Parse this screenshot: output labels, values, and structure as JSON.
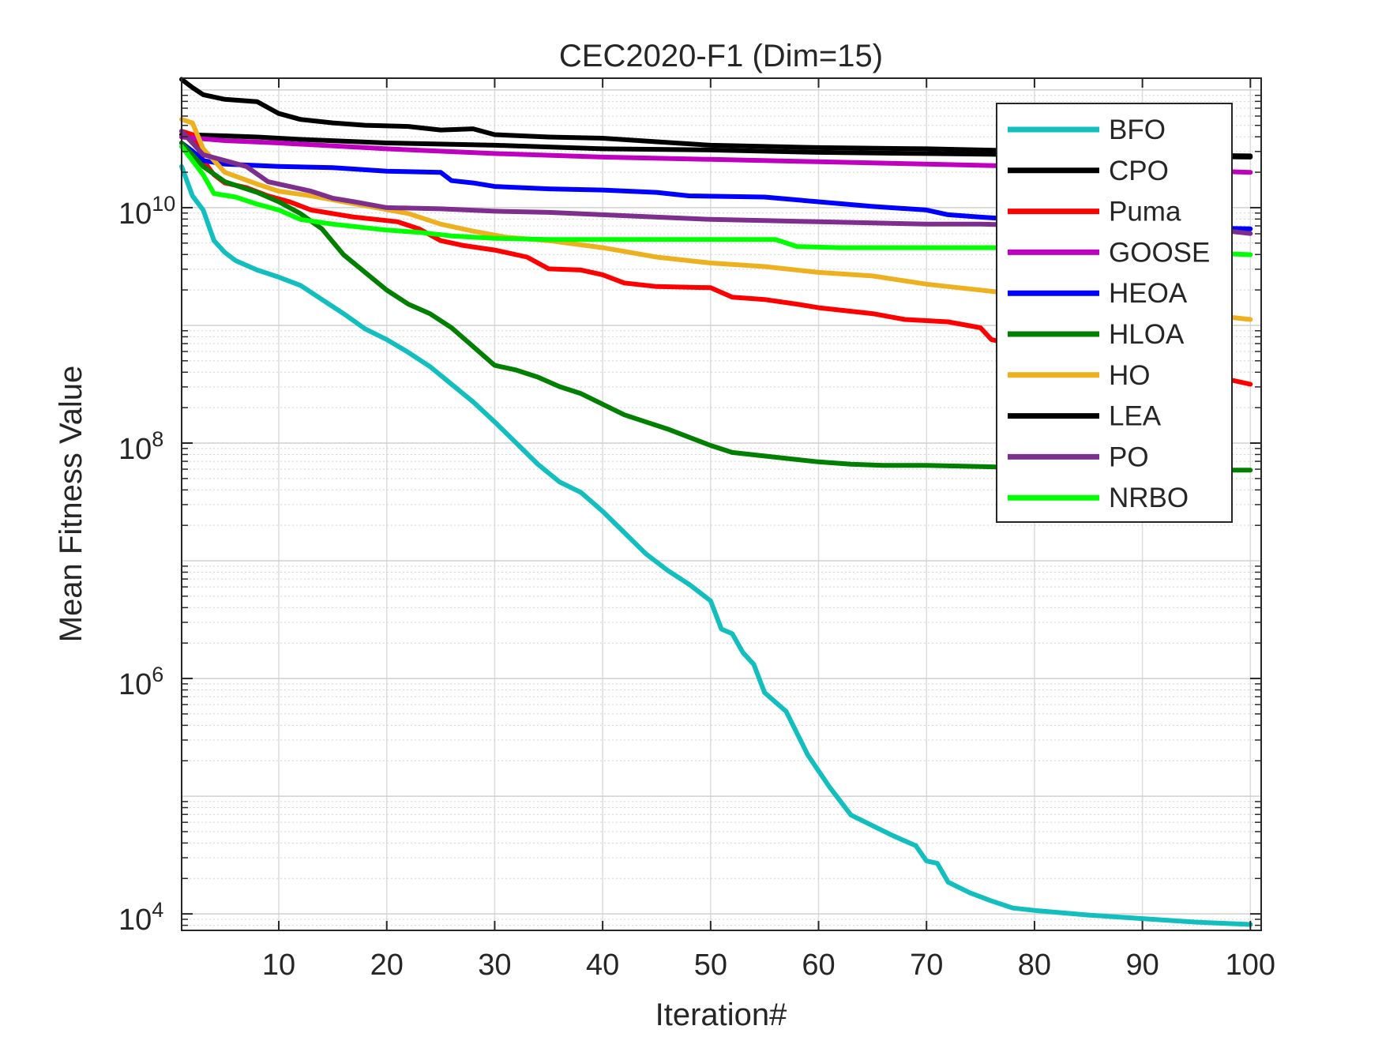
{
  "chart_data": {
    "type": "line",
    "title": "CEC2020-F1 (Dim=15)",
    "xlabel": "Iteration#",
    "ylabel": "Mean Fitness Value",
    "xscale": "linear",
    "yscale": "log",
    "xlim": [
      1,
      101
    ],
    "ylim_log10": [
      3.86,
      11.1
    ],
    "xticks": [
      {
        "value": 10,
        "label": "10"
      },
      {
        "value": 20,
        "label": "20"
      },
      {
        "value": 30,
        "label": "30"
      },
      {
        "value": 40,
        "label": "40"
      },
      {
        "value": 50,
        "label": "50"
      },
      {
        "value": 60,
        "label": "60"
      },
      {
        "value": 70,
        "label": "70"
      },
      {
        "value": 80,
        "label": "80"
      },
      {
        "value": 90,
        "label": "90"
      },
      {
        "value": 100,
        "label": "100"
      }
    ],
    "yticks": [
      {
        "exp": 4,
        "base": "10",
        "sup": "4"
      },
      {
        "exp": 6,
        "base": "10",
        "sup": "6"
      },
      {
        "exp": 8,
        "base": "10",
        "sup": "8"
      },
      {
        "exp": 10,
        "base": "10",
        "sup": "10"
      }
    ],
    "grid": true,
    "minor_grid": true,
    "legend_position": "top-right",
    "series": [
      {
        "name": "BFO",
        "color": "#12BEBE",
        "points": [
          [
            1,
            10.35
          ],
          [
            2,
            10.1
          ],
          [
            3,
            9.98
          ],
          [
            4,
            9.72
          ],
          [
            5,
            9.62
          ],
          [
            6,
            9.55
          ],
          [
            8,
            9.47
          ],
          [
            10,
            9.41
          ],
          [
            12,
            9.34
          ],
          [
            14,
            9.22
          ],
          [
            16,
            9.1
          ],
          [
            18,
            8.97
          ],
          [
            20,
            8.88
          ],
          [
            22,
            8.77
          ],
          [
            24,
            8.65
          ],
          [
            26,
            8.5
          ],
          [
            28,
            8.35
          ],
          [
            30,
            8.18
          ],
          [
            32,
            8.0
          ],
          [
            34,
            7.82
          ],
          [
            36,
            7.67
          ],
          [
            38,
            7.58
          ],
          [
            40,
            7.42
          ],
          [
            42,
            7.24
          ],
          [
            44,
            7.06
          ],
          [
            46,
            6.92
          ],
          [
            48,
            6.8
          ],
          [
            50,
            6.66
          ],
          [
            51,
            6.42
          ],
          [
            52,
            6.38
          ],
          [
            53,
            6.22
          ],
          [
            54,
            6.12
          ],
          [
            55,
            5.88
          ],
          [
            57,
            5.72
          ],
          [
            59,
            5.35
          ],
          [
            61,
            5.08
          ],
          [
            63,
            4.84
          ],
          [
            65,
            4.75
          ],
          [
            67,
            4.66
          ],
          [
            69,
            4.58
          ],
          [
            70,
            4.45
          ],
          [
            71,
            4.43
          ],
          [
            72,
            4.27
          ],
          [
            74,
            4.18
          ],
          [
            76,
            4.11
          ],
          [
            78,
            4.05
          ],
          [
            80,
            4.03
          ],
          [
            85,
            3.99
          ],
          [
            90,
            3.96
          ],
          [
            95,
            3.93
          ],
          [
            100,
            3.91
          ]
        ]
      },
      {
        "name": "CPO",
        "color": "#000000",
        "points": [
          [
            1,
            10.62
          ],
          [
            5,
            10.61
          ],
          [
            8,
            10.6
          ],
          [
            12,
            10.58
          ],
          [
            20,
            10.55
          ],
          [
            30,
            10.53
          ],
          [
            40,
            10.5
          ],
          [
            50,
            10.49
          ],
          [
            60,
            10.47
          ],
          [
            70,
            10.46
          ],
          [
            80,
            10.45
          ],
          [
            90,
            10.44
          ],
          [
            100,
            10.43
          ]
        ]
      },
      {
        "name": "Puma",
        "color": "#FF0000",
        "points": [
          [
            1,
            10.65
          ],
          [
            2,
            10.62
          ],
          [
            3,
            10.4
          ],
          [
            4,
            10.28
          ],
          [
            5,
            10.21
          ],
          [
            7,
            10.17
          ],
          [
            9,
            10.1
          ],
          [
            11,
            10.05
          ],
          [
            13,
            9.98
          ],
          [
            15,
            9.95
          ],
          [
            17,
            9.92
          ],
          [
            19,
            9.9
          ],
          [
            21,
            9.88
          ],
          [
            23,
            9.82
          ],
          [
            25,
            9.72
          ],
          [
            27,
            9.68
          ],
          [
            30,
            9.64
          ],
          [
            33,
            9.58
          ],
          [
            35,
            9.48
          ],
          [
            38,
            9.47
          ],
          [
            40,
            9.43
          ],
          [
            42,
            9.36
          ],
          [
            45,
            9.33
          ],
          [
            50,
            9.32
          ],
          [
            52,
            9.24
          ],
          [
            55,
            9.22
          ],
          [
            58,
            9.18
          ],
          [
            60,
            9.15
          ],
          [
            63,
            9.12
          ],
          [
            65,
            9.1
          ],
          [
            68,
            9.05
          ],
          [
            72,
            9.03
          ],
          [
            75,
            8.98
          ],
          [
            76,
            8.88
          ],
          [
            80,
            8.8
          ],
          [
            85,
            8.75
          ],
          [
            90,
            8.7
          ],
          [
            95,
            8.6
          ],
          [
            100,
            8.5
          ]
        ]
      },
      {
        "name": "GOOSE",
        "color": "#BF00BF",
        "points": [
          [
            1,
            10.6
          ],
          [
            5,
            10.57
          ],
          [
            10,
            10.55
          ],
          [
            20,
            10.5
          ],
          [
            30,
            10.46
          ],
          [
            40,
            10.43
          ],
          [
            50,
            10.41
          ],
          [
            60,
            10.39
          ],
          [
            70,
            10.37
          ],
          [
            80,
            10.35
          ],
          [
            90,
            10.33
          ],
          [
            100,
            10.3
          ]
        ]
      },
      {
        "name": "HEOA",
        "color": "#0000FF",
        "points": [
          [
            1,
            10.55
          ],
          [
            2,
            10.48
          ],
          [
            3,
            10.4
          ],
          [
            5,
            10.37
          ],
          [
            10,
            10.35
          ],
          [
            15,
            10.34
          ],
          [
            20,
            10.31
          ],
          [
            25,
            10.3
          ],
          [
            26,
            10.23
          ],
          [
            28,
            10.21
          ],
          [
            30,
            10.18
          ],
          [
            35,
            10.16
          ],
          [
            40,
            10.15
          ],
          [
            45,
            10.13
          ],
          [
            48,
            10.1
          ],
          [
            55,
            10.09
          ],
          [
            60,
            10.05
          ],
          [
            65,
            10.01
          ],
          [
            70,
            9.98
          ],
          [
            72,
            9.94
          ],
          [
            75,
            9.92
          ],
          [
            80,
            9.89
          ],
          [
            85,
            9.87
          ],
          [
            90,
            9.85
          ],
          [
            95,
            9.83
          ],
          [
            100,
            9.82
          ]
        ]
      },
      {
        "name": "HLOA",
        "color": "#007F00",
        "points": [
          [
            1,
            10.55
          ],
          [
            3,
            10.35
          ],
          [
            5,
            10.22
          ],
          [
            8,
            10.13
          ],
          [
            10,
            10.05
          ],
          [
            12,
            9.95
          ],
          [
            14,
            9.82
          ],
          [
            16,
            9.6
          ],
          [
            18,
            9.45
          ],
          [
            20,
            9.3
          ],
          [
            22,
            9.18
          ],
          [
            24,
            9.1
          ],
          [
            26,
            8.98
          ],
          [
            28,
            8.82
          ],
          [
            30,
            8.66
          ],
          [
            32,
            8.62
          ],
          [
            34,
            8.56
          ],
          [
            36,
            8.48
          ],
          [
            38,
            8.42
          ],
          [
            40,
            8.33
          ],
          [
            42,
            8.24
          ],
          [
            44,
            8.18
          ],
          [
            46,
            8.12
          ],
          [
            48,
            8.05
          ],
          [
            50,
            7.98
          ],
          [
            52,
            7.92
          ],
          [
            55,
            7.89
          ],
          [
            58,
            7.86
          ],
          [
            60,
            7.84
          ],
          [
            63,
            7.82
          ],
          [
            66,
            7.81
          ],
          [
            70,
            7.81
          ],
          [
            75,
            7.8
          ],
          [
            80,
            7.79
          ],
          [
            85,
            7.78
          ],
          [
            90,
            7.78
          ],
          [
            95,
            7.77
          ],
          [
            100,
            7.77
          ]
        ]
      },
      {
        "name": "HO",
        "color": "#EDB120",
        "points": [
          [
            1,
            10.75
          ],
          [
            2,
            10.72
          ],
          [
            3,
            10.5
          ],
          [
            5,
            10.3
          ],
          [
            8,
            10.2
          ],
          [
            10,
            10.14
          ],
          [
            13,
            10.1
          ],
          [
            16,
            10.05
          ],
          [
            19,
            10.0
          ],
          [
            22,
            9.95
          ],
          [
            25,
            9.86
          ],
          [
            28,
            9.8
          ],
          [
            31,
            9.75
          ],
          [
            35,
            9.72
          ],
          [
            40,
            9.66
          ],
          [
            45,
            9.58
          ],
          [
            50,
            9.53
          ],
          [
            55,
            9.5
          ],
          [
            60,
            9.45
          ],
          [
            65,
            9.42
          ],
          [
            70,
            9.35
          ],
          [
            75,
            9.3
          ],
          [
            80,
            9.25
          ],
          [
            85,
            9.2
          ],
          [
            90,
            9.15
          ],
          [
            95,
            9.1
          ],
          [
            100,
            9.05
          ]
        ]
      },
      {
        "name": "LEA",
        "color": "#000000",
        "points": [
          [
            1,
            11.09
          ],
          [
            2,
            11.02
          ],
          [
            3,
            10.96
          ],
          [
            5,
            10.92
          ],
          [
            8,
            10.9
          ],
          [
            10,
            10.8
          ],
          [
            12,
            10.75
          ],
          [
            15,
            10.72
          ],
          [
            18,
            10.7
          ],
          [
            22,
            10.69
          ],
          [
            25,
            10.66
          ],
          [
            28,
            10.67
          ],
          [
            30,
            10.62
          ],
          [
            35,
            10.6
          ],
          [
            40,
            10.59
          ],
          [
            45,
            10.56
          ],
          [
            50,
            10.53
          ],
          [
            55,
            10.52
          ],
          [
            60,
            10.51
          ],
          [
            70,
            10.5
          ],
          [
            80,
            10.48
          ],
          [
            90,
            10.45
          ],
          [
            100,
            10.44
          ]
        ]
      },
      {
        "name": "PO",
        "color": "#7E2F8E",
        "points": [
          [
            1,
            10.65
          ],
          [
            3,
            10.45
          ],
          [
            5,
            10.4
          ],
          [
            7,
            10.35
          ],
          [
            9,
            10.22
          ],
          [
            11,
            10.18
          ],
          [
            13,
            10.14
          ],
          [
            15,
            10.08
          ],
          [
            17,
            10.05
          ],
          [
            20,
            10.0
          ],
          [
            25,
            9.99
          ],
          [
            30,
            9.97
          ],
          [
            35,
            9.96
          ],
          [
            40,
            9.94
          ],
          [
            45,
            9.92
          ],
          [
            50,
            9.9
          ],
          [
            55,
            9.89
          ],
          [
            60,
            9.88
          ],
          [
            65,
            9.87
          ],
          [
            70,
            9.86
          ],
          [
            75,
            9.86
          ],
          [
            80,
            9.85
          ],
          [
            85,
            9.84
          ],
          [
            90,
            9.84
          ],
          [
            95,
            9.83
          ],
          [
            100,
            9.78
          ]
        ]
      },
      {
        "name": "NRBO",
        "color": "#00FF00",
        "points": [
          [
            1,
            10.52
          ],
          [
            3,
            10.28
          ],
          [
            4,
            10.12
          ],
          [
            6,
            10.09
          ],
          [
            8,
            10.03
          ],
          [
            10,
            9.98
          ],
          [
            12,
            9.9
          ],
          [
            15,
            9.86
          ],
          [
            18,
            9.83
          ],
          [
            20,
            9.81
          ],
          [
            23,
            9.79
          ],
          [
            26,
            9.76
          ],
          [
            30,
            9.74
          ],
          [
            35,
            9.73
          ],
          [
            40,
            9.73
          ],
          [
            45,
            9.73
          ],
          [
            50,
            9.73
          ],
          [
            56,
            9.73
          ],
          [
            58,
            9.67
          ],
          [
            62,
            9.66
          ],
          [
            70,
            9.66
          ],
          [
            80,
            9.66
          ],
          [
            90,
            9.64
          ],
          [
            100,
            9.6
          ]
        ]
      }
    ]
  }
}
